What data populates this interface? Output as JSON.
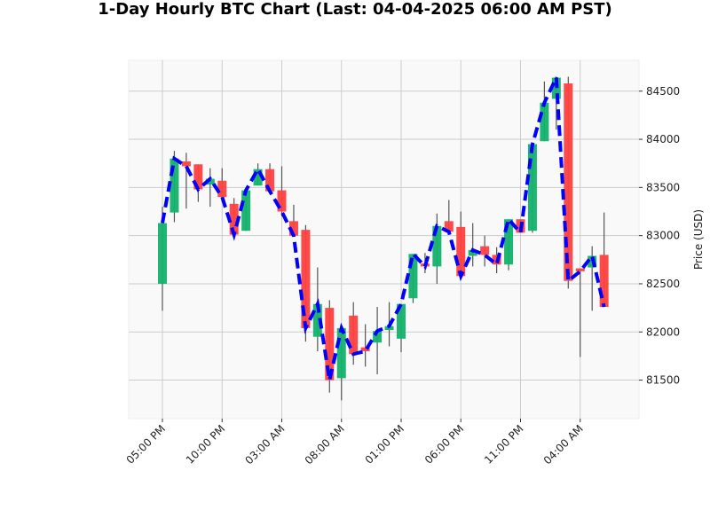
{
  "chart_data": {
    "type": "candlestick",
    "title": "1-Day Hourly BTC Chart (Last: 04-04-2025 06:00 AM PST)",
    "xlabel": "",
    "ylabel": "Price (USD)",
    "ylim": [
      81100,
      84820
    ],
    "grid": true,
    "y_axis_side": "right",
    "y_ticks": [
      81500,
      82000,
      82500,
      83000,
      83500,
      84000,
      84500
    ],
    "x_tick_labels": [
      "05:00 PM",
      "10:00 PM",
      "03:00 AM",
      "08:00 AM",
      "01:00 PM",
      "06:00 PM",
      "11:00 PM",
      "04:00 AM"
    ],
    "x_tick_every_hours": 5,
    "colors": {
      "up": "#13b26b",
      "down": "#ff4040",
      "line": "#0000ff",
      "wick": "#555555"
    },
    "candles": [
      {
        "time": "05:00 PM",
        "open": 82500,
        "high": 83300,
        "low": 82220,
        "close": 83130
      },
      {
        "time": "06:00 PM",
        "open": 83240,
        "high": 83880,
        "low": 83140,
        "close": 83800
      },
      {
        "time": "07:00 PM",
        "open": 83770,
        "high": 83860,
        "low": 83280,
        "close": 83720
      },
      {
        "time": "08:00 PM",
        "open": 83740,
        "high": 83740,
        "low": 83350,
        "close": 83480
      },
      {
        "time": "09:00 PM",
        "open": 83530,
        "high": 83700,
        "low": 83300,
        "close": 83590
      },
      {
        "time": "10:00 PM",
        "open": 83570,
        "high": 83700,
        "low": 83350,
        "close": 83400
      },
      {
        "time": "11:00 PM",
        "open": 83330,
        "high": 83390,
        "low": 83010,
        "close": 83010
      },
      {
        "time": "12:00 AM",
        "open": 83050,
        "high": 83470,
        "low": 83050,
        "close": 83470
      },
      {
        "time": "01:00 AM",
        "open": 83520,
        "high": 83750,
        "low": 83520,
        "close": 83690
      },
      {
        "time": "02:00 AM",
        "open": 83690,
        "high": 83750,
        "low": 83460,
        "close": 83460
      },
      {
        "time": "03:00 AM",
        "open": 83470,
        "high": 83720,
        "low": 83200,
        "close": 83250
      },
      {
        "time": "04:00 AM",
        "open": 83150,
        "high": 83320,
        "low": 83000,
        "close": 83000
      },
      {
        "time": "05:00 AM",
        "open": 83060,
        "high": 83110,
        "low": 81900,
        "close": 82040
      },
      {
        "time": "06:00 AM",
        "open": 81950,
        "high": 82670,
        "low": 81800,
        "close": 82290
      },
      {
        "time": "07:00 AM",
        "open": 82250,
        "high": 82330,
        "low": 81370,
        "close": 81500
      },
      {
        "time": "08:00 AM",
        "open": 81520,
        "high": 82040,
        "low": 81290,
        "close": 82040
      },
      {
        "time": "09:00 AM",
        "open": 82170,
        "high": 82310,
        "low": 81660,
        "close": 81770
      },
      {
        "time": "10:00 AM",
        "open": 81840,
        "high": 82080,
        "low": 81640,
        "close": 81800
      },
      {
        "time": "11:00 AM",
        "open": 81890,
        "high": 82260,
        "low": 81560,
        "close": 82010
      },
      {
        "time": "12:00 PM",
        "open": 82020,
        "high": 82310,
        "low": 81850,
        "close": 82060
      },
      {
        "time": "01:00 PM",
        "open": 81930,
        "high": 82290,
        "low": 81790,
        "close": 82290
      },
      {
        "time": "02:00 PM",
        "open": 82350,
        "high": 82810,
        "low": 82300,
        "close": 82810
      },
      {
        "time": "03:00 PM",
        "open": 82710,
        "high": 82820,
        "low": 82610,
        "close": 82680
      },
      {
        "time": "04:00 PM",
        "open": 82680,
        "high": 83230,
        "low": 82500,
        "close": 83100
      },
      {
        "time": "05:00 PM",
        "open": 83150,
        "high": 83370,
        "low": 83040,
        "close": 83040
      },
      {
        "time": "06:00 PM",
        "open": 83090,
        "high": 83250,
        "low": 82580,
        "close": 82580
      },
      {
        "time": "07:00 PM",
        "open": 82790,
        "high": 83130,
        "low": 82680,
        "close": 82850
      },
      {
        "time": "08:00 PM",
        "open": 82890,
        "high": 83000,
        "low": 82680,
        "close": 82800
      },
      {
        "time": "09:00 PM",
        "open": 82800,
        "high": 82880,
        "low": 82610,
        "close": 82700
      },
      {
        "time": "10:00 PM",
        "open": 82700,
        "high": 83170,
        "low": 82640,
        "close": 83170
      },
      {
        "time": "11:00 PM",
        "open": 83170,
        "high": 83170,
        "low": 83030,
        "close": 83030
      },
      {
        "time": "12:00 AM",
        "open": 83050,
        "high": 83950,
        "low": 83030,
        "close": 83950
      },
      {
        "time": "01:00 AM",
        "open": 83980,
        "high": 84600,
        "low": 83980,
        "close": 84380
      },
      {
        "time": "02:00 AM",
        "open": 84420,
        "high": 84650,
        "low": 84100,
        "close": 84640
      },
      {
        "time": "03:00 AM",
        "open": 84580,
        "high": 84650,
        "low": 82450,
        "close": 82530
      },
      {
        "time": "04:00 AM",
        "open": 82660,
        "high": 82660,
        "low": 81740,
        "close": 82630
      },
      {
        "time": "05:00 AM",
        "open": 82670,
        "high": 82890,
        "low": 82220,
        "close": 82790
      },
      {
        "time": "06:00 AM",
        "open": 82800,
        "high": 83240,
        "low": 82260,
        "close": 82260
      }
    ]
  }
}
